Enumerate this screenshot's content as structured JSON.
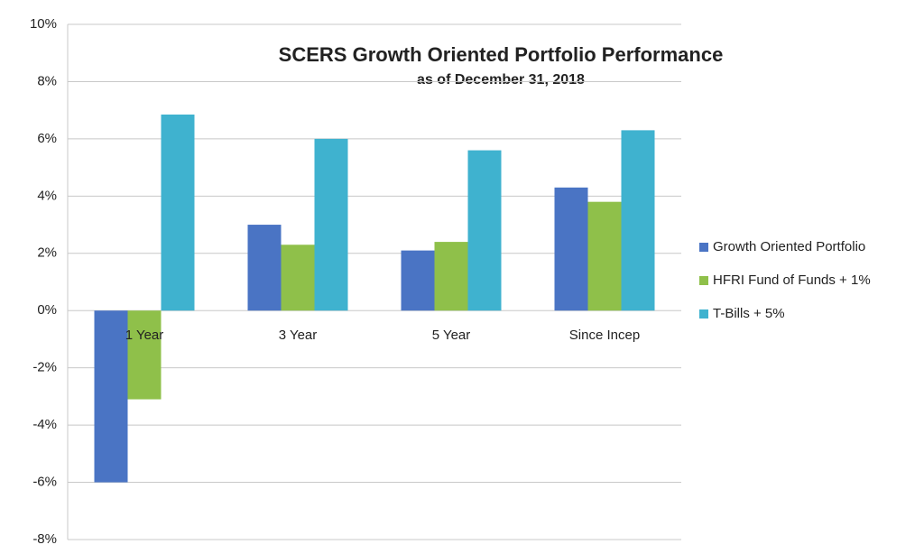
{
  "chart_data": {
    "type": "bar",
    "title": "SCERS Growth Oriented Portfolio Performance",
    "subtitle": "as of December 31, 2018",
    "categories": [
      "1 Year",
      "3 Year",
      "5 Year",
      "Since Incep"
    ],
    "series": [
      {
        "name": "Growth Oriented Portfolio",
        "color": "#4a74c4",
        "values": [
          -6.0,
          3.0,
          2.1,
          4.3
        ]
      },
      {
        "name": "HFRI Fund of Funds + 1%",
        "color": "#8fc04a",
        "values": [
          -3.1,
          2.3,
          2.4,
          3.8
        ]
      },
      {
        "name": "T-Bills + 5%",
        "color": "#3fb2cf",
        "values": [
          6.85,
          6.0,
          5.6,
          6.3
        ]
      }
    ],
    "ylim": [
      -8,
      10
    ],
    "yticks": [
      {
        "value": -8,
        "label": "-8%"
      },
      {
        "value": -6,
        "label": "-6%"
      },
      {
        "value": -4,
        "label": "-4%"
      },
      {
        "value": -2,
        "label": "-2%"
      },
      {
        "value": 0,
        "label": "0%"
      },
      {
        "value": 2,
        "label": "2%"
      },
      {
        "value": 4,
        "label": "4%"
      },
      {
        "value": 6,
        "label": "6%"
      },
      {
        "value": 8,
        "label": "8%"
      },
      {
        "value": 10,
        "label": "10%"
      }
    ],
    "grid": true,
    "legend": "right"
  }
}
